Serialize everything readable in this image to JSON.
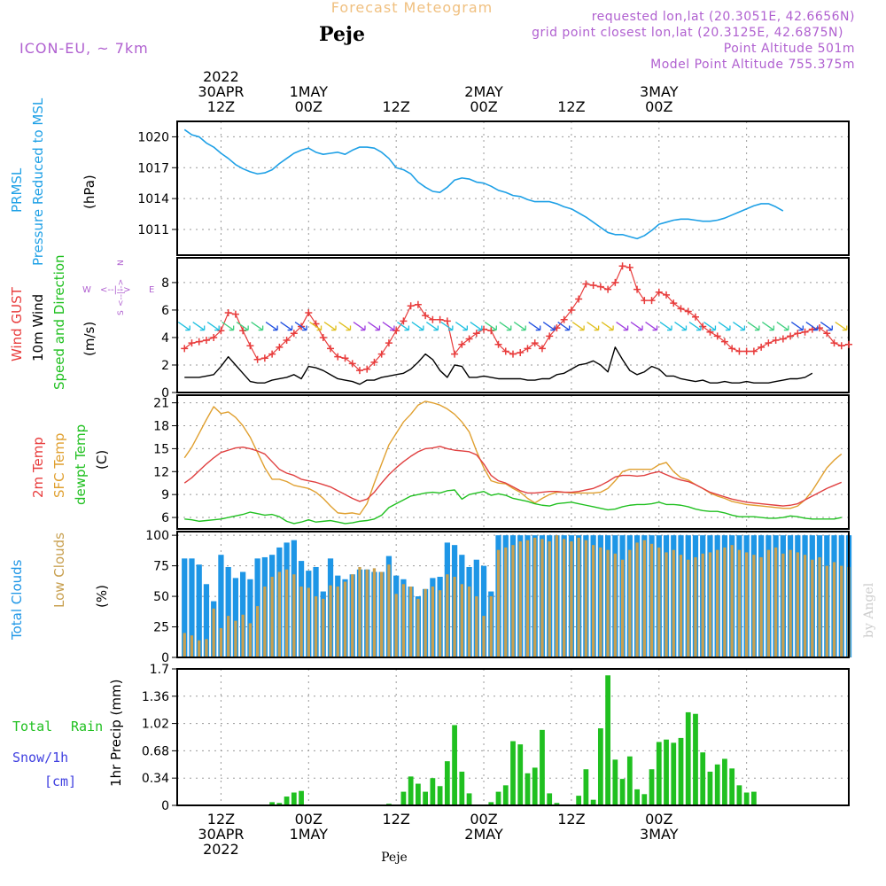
{
  "header": {
    "title": "Forecast Meteogram",
    "location": "Peje",
    "model": "ICON-EU, ~ 7km",
    "requested": "requested lon,lat (20.3051E, 42.6656N)",
    "gridpoint": "grid point closest lon,lat (20.3125E, 42.6875N)",
    "point_alt": "Point Altitude 501m",
    "model_alt": "Model Point Altitude 755.375m"
  },
  "time_axis": {
    "top_labels": [
      {
        "hour": 12,
        "lines": [
          "2022",
          "30APR",
          "12Z"
        ]
      },
      {
        "hour": 24,
        "lines": [
          "1MAY",
          "00Z"
        ]
      },
      {
        "hour": 36,
        "lines": [
          "12Z"
        ]
      },
      {
        "hour": 48,
        "lines": [
          "2MAY",
          "00Z"
        ]
      },
      {
        "hour": 60,
        "lines": [
          "12Z"
        ]
      },
      {
        "hour": 72,
        "lines": [
          "3MAY",
          "00Z"
        ]
      }
    ],
    "bottom_labels": [
      {
        "hour": 12,
        "lines": [
          "12Z",
          "30APR",
          "2022"
        ]
      },
      {
        "hour": 24,
        "lines": [
          "00Z",
          "1MAY"
        ]
      },
      {
        "hour": 36,
        "lines": [
          "12Z"
        ]
      },
      {
        "hour": 48,
        "lines": [
          "00Z",
          "2MAY"
        ]
      },
      {
        "hour": 60,
        "lines": [
          "12Z"
        ]
      },
      {
        "hour": 72,
        "lines": [
          "00Z",
          "3MAY"
        ]
      }
    ],
    "footer": "Peje",
    "watermark": "by Angel"
  },
  "panel_labels": {
    "pressure": [
      "PRMSL",
      "Pressure Reduced to MSL",
      "(hPa)"
    ],
    "wind": [
      "Wind GUST",
      "10m Wind",
      "Speed and Direction",
      "(m/s)"
    ],
    "compass": [
      "N",
      "S",
      "W",
      "E",
      "<--|-->"
    ],
    "temp": [
      "2m Temp",
      "SFC Temp",
      "dewpt Temp",
      "(C)"
    ],
    "clouds": [
      "Total Clouds",
      "Low Clouds",
      "(%)"
    ],
    "precip": [
      "Total",
      "Rain",
      "Snow/1h",
      "[cm]",
      "1hr Precip (mm)"
    ]
  },
  "colors": {
    "pressure": "#1ea0e6",
    "gust": "#e83c3c",
    "wind": "#000000",
    "temp2m": "#e04040",
    "sfc": "#e0a030",
    "dewpt": "#20c020",
    "total_clouds": "#1e96e6",
    "low_clouds": "#c8a050",
    "rain": "#20c020",
    "snow": "#4040e0",
    "label_purple": "#b060d0"
  },
  "chart_data": [
    {
      "type": "line",
      "title": "PRMSL Pressure Reduced to MSL",
      "ylabel": "(hPa)",
      "ylim": [
        1008.5,
        1021.5
      ],
      "yticks": [
        1011,
        1014,
        1017,
        1020
      ],
      "x_start_hour": 7,
      "x_step_hours": 1,
      "series": [
        {
          "name": "PRMSL",
          "values": [
            1020.7,
            1020.2,
            1020.0,
            1019.4,
            1019.0,
            1018.4,
            1017.9,
            1017.3,
            1016.9,
            1016.6,
            1016.4,
            1016.5,
            1016.8,
            1017.4,
            1017.9,
            1018.4,
            1018.7,
            1018.9,
            1018.5,
            1018.3,
            1018.4,
            1018.5,
            1018.3,
            1018.7,
            1019.0,
            1019.0,
            1018.9,
            1018.5,
            1017.9,
            1017.0,
            1016.8,
            1016.4,
            1015.6,
            1015.1,
            1014.7,
            1014.6,
            1015.1,
            1015.8,
            1016.0,
            1015.9,
            1015.6,
            1015.5,
            1015.2,
            1014.8,
            1014.6,
            1014.3,
            1014.2,
            1013.9,
            1013.7,
            1013.7,
            1013.7,
            1013.5,
            1013.2,
            1013.0,
            1012.6,
            1012.2,
            1011.7,
            1011.2,
            1010.7,
            1010.5,
            1010.5,
            1010.3,
            1010.1,
            1010.4,
            1010.9,
            1011.5,
            1011.7,
            1011.9,
            1012.0,
            1012.0,
            1011.9,
            1011.8,
            1011.8,
            1011.9,
            1012.1,
            1012.4,
            1012.7,
            1013.0,
            1013.3,
            1013.5,
            1013.5,
            1013.2,
            1012.8
          ]
        }
      ]
    },
    {
      "type": "line",
      "title": "Wind GUST / 10m Wind Speed and Direction",
      "ylabel": "(m/s)",
      "ylim": [
        0,
        9.8
      ],
      "yticks": [
        0,
        2,
        4,
        6,
        8
      ],
      "x_start_hour": 7,
      "x_step_hours": 1,
      "series": [
        {
          "name": "Wind GUST",
          "values": [
            3.2,
            3.6,
            3.7,
            3.8,
            4.0,
            4.5,
            5.8,
            5.7,
            4.5,
            3.4,
            2.4,
            2.5,
            2.8,
            3.3,
            3.8,
            4.3,
            4.8,
            5.8,
            5.0,
            4.0,
            3.2,
            2.6,
            2.5,
            2.1,
            1.6,
            1.7,
            2.2,
            2.8,
            3.6,
            4.5,
            5.2,
            6.3,
            6.4,
            5.6,
            5.3,
            5.3,
            5.2,
            2.8,
            3.5,
            3.9,
            4.3,
            4.6,
            4.5,
            3.5,
            3.0,
            2.8,
            2.9,
            3.2,
            3.6,
            3.2,
            4.1,
            4.7,
            5.3,
            6.0,
            6.8,
            7.9,
            7.8,
            7.7,
            7.5,
            8.0,
            9.2,
            9.1,
            7.5,
            6.7,
            6.7,
            7.3,
            7.1,
            6.5,
            6.1,
            5.9,
            5.5,
            4.8,
            4.4,
            4.1,
            3.7,
            3.2,
            3.0,
            3.0,
            3.0,
            3.3,
            3.6,
            3.8,
            3.9,
            4.1,
            4.3,
            4.4,
            4.6,
            4.7,
            4.3,
            3.6,
            3.4,
            3.5
          ]
        },
        {
          "name": "10m Wind",
          "values": [
            1.1,
            1.1,
            1.1,
            1.2,
            1.3,
            1.9,
            2.6,
            2.0,
            1.4,
            0.8,
            0.7,
            0.7,
            0.9,
            1.0,
            1.1,
            1.3,
            1.0,
            1.9,
            1.8,
            1.6,
            1.3,
            1.0,
            0.9,
            0.8,
            0.6,
            0.9,
            0.9,
            1.1,
            1.2,
            1.3,
            1.4,
            1.7,
            2.2,
            2.8,
            2.4,
            1.6,
            1.1,
            2.0,
            1.9,
            1.1,
            1.1,
            1.2,
            1.1,
            1.0,
            1.0,
            1.0,
            1.0,
            0.9,
            0.9,
            1.0,
            1.0,
            1.3,
            1.4,
            1.7,
            2.0,
            2.1,
            2.3,
            2.0,
            1.5,
            3.3,
            2.4,
            1.6,
            1.3,
            1.5,
            1.9,
            1.7,
            1.2,
            1.2,
            1.0,
            0.9,
            0.8,
            0.9,
            0.7,
            0.7,
            0.8,
            0.7,
            0.7,
            0.8,
            0.7,
            0.7,
            0.7,
            0.8,
            0.9,
            1.0,
            1.0,
            1.1,
            1.4
          ]
        }
      ]
    },
    {
      "type": "line",
      "title": "2m Temp / SFC Temp / dewpt Temp",
      "ylabel": "(C)",
      "ylim": [
        4.5,
        22
      ],
      "yticks": [
        6,
        9,
        12,
        15,
        18,
        21
      ],
      "x_start_hour": 7,
      "x_step_hours": 1,
      "series": [
        {
          "name": "2m Temp",
          "values": [
            10.5,
            11.2,
            12.1,
            13.0,
            13.8,
            14.5,
            14.8,
            15.1,
            15.2,
            15.0,
            14.7,
            14.3,
            13.3,
            12.3,
            11.8,
            11.5,
            11.0,
            10.8,
            10.6,
            10.3,
            10.0,
            9.5,
            9.0,
            8.5,
            8.1,
            8.4,
            9.3,
            10.5,
            11.6,
            12.5,
            13.3,
            14.0,
            14.6,
            15.0,
            15.1,
            15.3,
            15.0,
            14.8,
            14.7,
            14.6,
            14.2,
            13.0,
            11.5,
            10.8,
            10.5,
            10.0,
            9.5,
            9.2,
            9.2,
            9.3,
            9.4,
            9.4,
            9.3,
            9.3,
            9.4,
            9.6,
            9.8,
            10.2,
            10.7,
            11.3,
            11.5,
            11.5,
            11.4,
            11.5,
            11.8,
            12.0,
            11.6,
            11.2,
            10.9,
            10.7,
            10.3,
            9.8,
            9.3,
            9.0,
            8.7,
            8.4,
            8.2,
            8.0,
            7.9,
            7.8,
            7.7,
            7.6,
            7.5,
            7.6,
            7.8,
            8.3,
            8.8,
            9.3,
            9.8,
            10.2,
            10.6
          ]
        },
        {
          "name": "SFC Temp",
          "values": [
            13.8,
            15.2,
            17.0,
            18.8,
            20.5,
            19.6,
            19.8,
            19.1,
            18.0,
            16.5,
            14.5,
            12.5,
            11.0,
            11.0,
            10.7,
            10.2,
            10.0,
            9.8,
            9.3,
            8.5,
            7.5,
            6.6,
            6.5,
            6.6,
            6.4,
            7.8,
            10.5,
            13.0,
            15.5,
            17.0,
            18.5,
            19.5,
            20.7,
            21.2,
            21.0,
            20.7,
            20.2,
            19.5,
            18.5,
            17.2,
            14.7,
            12.5,
            10.8,
            10.5,
            10.4,
            9.8,
            9.3,
            8.5,
            7.9,
            8.5,
            9.0,
            9.3,
            9.3,
            9.2,
            9.2,
            9.2,
            9.2,
            9.3,
            9.8,
            10.8,
            12.0,
            12.3,
            12.3,
            12.3,
            12.3,
            12.9,
            13.2,
            12.0,
            11.2,
            10.9,
            10.3,
            9.8,
            9.2,
            8.8,
            8.5,
            8.1,
            7.9,
            7.7,
            7.6,
            7.5,
            7.4,
            7.3,
            7.2,
            7.2,
            7.5,
            8.3,
            9.5,
            11.0,
            12.5,
            13.5,
            14.3
          ]
        },
        {
          "name": "dewpt Temp",
          "values": [
            5.8,
            5.7,
            5.5,
            5.6,
            5.7,
            5.8,
            6.0,
            6.2,
            6.4,
            6.7,
            6.5,
            6.3,
            6.4,
            6.1,
            5.5,
            5.2,
            5.4,
            5.7,
            5.4,
            5.5,
            5.6,
            5.4,
            5.2,
            5.3,
            5.5,
            5.6,
            5.8,
            6.3,
            7.3,
            7.8,
            8.3,
            8.8,
            9.0,
            9.2,
            9.3,
            9.2,
            9.5,
            9.6,
            8.4,
            9.0,
            9.2,
            9.4,
            8.9,
            9.1,
            8.9,
            8.5,
            8.3,
            8.1,
            7.8,
            7.6,
            7.5,
            7.8,
            7.9,
            8.0,
            7.8,
            7.6,
            7.4,
            7.2,
            7.0,
            7.1,
            7.4,
            7.6,
            7.7,
            7.7,
            7.8,
            8.0,
            7.7,
            7.7,
            7.6,
            7.4,
            7.1,
            6.9,
            6.8,
            6.8,
            6.6,
            6.3,
            6.1,
            6.1,
            6.1,
            6.0,
            5.9,
            5.9,
            6.0,
            6.2,
            6.1,
            5.9,
            5.8,
            5.8,
            5.8,
            5.8,
            6.0
          ]
        }
      ]
    },
    {
      "type": "bar",
      "title": "Total Clouds / Low Clouds",
      "ylabel": "(%)",
      "ylim": [
        0,
        103
      ],
      "yticks": [
        0,
        25,
        50,
        75,
        100
      ],
      "x_start_hour": 7,
      "x_step_hours": 1,
      "series": [
        {
          "name": "Total Clouds",
          "values": [
            81,
            81,
            76,
            60,
            46,
            84,
            74,
            65,
            70,
            64,
            81,
            82,
            84,
            90,
            94,
            96,
            79,
            71,
            74,
            54,
            81,
            67,
            64,
            68,
            72,
            72,
            70,
            70,
            83,
            67,
            64,
            58,
            50,
            56,
            65,
            66,
            94,
            92,
            84,
            74,
            80,
            75,
            54,
            100,
            100,
            100,
            100,
            100,
            100,
            100,
            100,
            100,
            100,
            100,
            100,
            100,
            100,
            100,
            100,
            100,
            100,
            100,
            100,
            100,
            100,
            100,
            100,
            100,
            100,
            100,
            100,
            100,
            100,
            100,
            100,
            100,
            100,
            100,
            100,
            100,
            100,
            100,
            100,
            100,
            100,
            100,
            100,
            100,
            100,
            100,
            100,
            100
          ]
        },
        {
          "name": "Low Clouds",
          "values": [
            20,
            18,
            14,
            15,
            40,
            24,
            34,
            30,
            35,
            28,
            42,
            58,
            66,
            70,
            72,
            68,
            58,
            57,
            50,
            48,
            59,
            58,
            62,
            68,
            74,
            72,
            73,
            70,
            76,
            52,
            60,
            58,
            48,
            56,
            58,
            55,
            68,
            66,
            60,
            58,
            50,
            34,
            50,
            88,
            90,
            92,
            95,
            96,
            98,
            97,
            95,
            100,
            97,
            95,
            98,
            96,
            92,
            90,
            88,
            85,
            80,
            88,
            94,
            96,
            93,
            90,
            86,
            88,
            84,
            80,
            82,
            85,
            86,
            88,
            90,
            92,
            88,
            86,
            84,
            82,
            88,
            90,
            85,
            88,
            86,
            84,
            80,
            82,
            75,
            78,
            75,
            74
          ]
        }
      ]
    },
    {
      "type": "bar",
      "title": "1hr Precip (mm)",
      "ylabel": "1hr Precip (mm)",
      "ylim": [
        0,
        1.7
      ],
      "yticks": [
        0,
        0.34,
        0.68,
        1.02,
        1.36,
        1.7
      ],
      "x_start_hour": 7,
      "x_step_hours": 1,
      "series": [
        {
          "name": "Total Rain",
          "values": [
            0,
            0,
            0,
            0,
            0,
            0,
            0,
            0,
            0,
            0,
            0,
            0,
            0.04,
            0.03,
            0.11,
            0.16,
            0.18,
            0,
            0,
            0,
            0,
            0,
            0,
            0,
            0,
            0,
            0,
            0,
            0.02,
            0,
            0.17,
            0.36,
            0.27,
            0.17,
            0.34,
            0.24,
            0.55,
            1.0,
            0.42,
            0.15,
            0,
            0,
            0.04,
            0.17,
            0.25,
            0.8,
            0.76,
            0.4,
            0.47,
            0.94,
            0.15,
            0.03,
            0,
            0,
            0.12,
            0.45,
            0.07,
            0.96,
            1.62,
            0.57,
            0.33,
            0.61,
            0.2,
            0.14,
            0.45,
            0.79,
            0.82,
            0.78,
            0.84,
            1.16,
            1.14,
            0.66,
            0.42,
            0.51,
            0.58,
            0.46,
            0.25,
            0.16,
            0.17
          ]
        },
        {
          "name": "Snow/1h",
          "values": [
            0
          ]
        }
      ]
    }
  ]
}
